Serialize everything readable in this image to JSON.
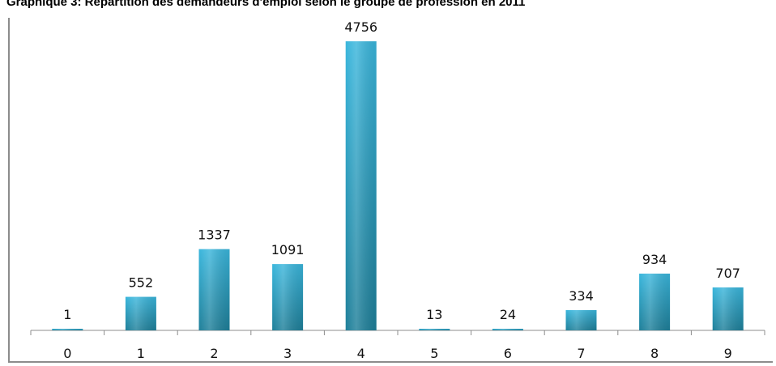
{
  "chart_data": {
    "type": "bar",
    "title": "Graphique 3: Répartition des demandeurs d'emploi selon le  groupe de profession en 2011",
    "categories": [
      "0",
      "1",
      "2",
      "3",
      "4",
      "5",
      "6",
      "7",
      "8",
      "9"
    ],
    "values": [
      1,
      552,
      1337,
      1091,
      4756,
      13,
      24,
      334,
      934,
      707
    ],
    "ylim": [
      0,
      4756
    ],
    "grid": false,
    "legend": "none",
    "bar_color_top": "#3ab6dc",
    "bar_color_bottom": "#1e7f99",
    "axis_color": "#8c8c8c"
  }
}
